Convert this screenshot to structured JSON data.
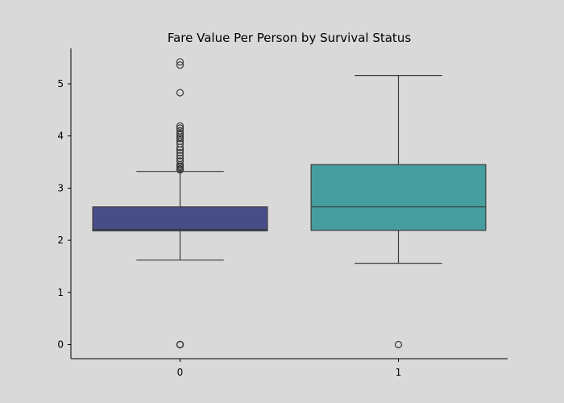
{
  "chart_data": {
    "type": "box",
    "title": "Fare Value Per Person by Survival Status",
    "xlabel": "",
    "ylabel": "",
    "categories": [
      "0",
      "1"
    ],
    "y_ticks": [
      0,
      1,
      2,
      3,
      4,
      5
    ],
    "ylim": [
      -0.27,
      5.68
    ],
    "grid": false,
    "boxes": [
      {
        "category": "0",
        "color": "#474e87",
        "whisker_low": 1.62,
        "q1": 2.18,
        "median": 2.21,
        "q3": 2.64,
        "whisker_high": 3.32,
        "outliers": [
          0,
          0,
          0,
          0,
          3.35,
          3.37,
          3.4,
          3.42,
          3.45,
          3.52,
          3.57,
          3.62,
          3.68,
          3.73,
          3.78,
          3.85,
          3.9,
          3.95,
          3.98,
          4.02,
          4.05,
          4.1,
          4.15,
          4.19,
          4.83,
          5.36,
          5.42
        ]
      },
      {
        "category": "1",
        "color": "#459d9e",
        "whisker_low": 1.56,
        "q1": 2.19,
        "median": 2.64,
        "q3": 3.45,
        "whisker_high": 5.16,
        "outliers": [
          0
        ]
      }
    ]
  }
}
